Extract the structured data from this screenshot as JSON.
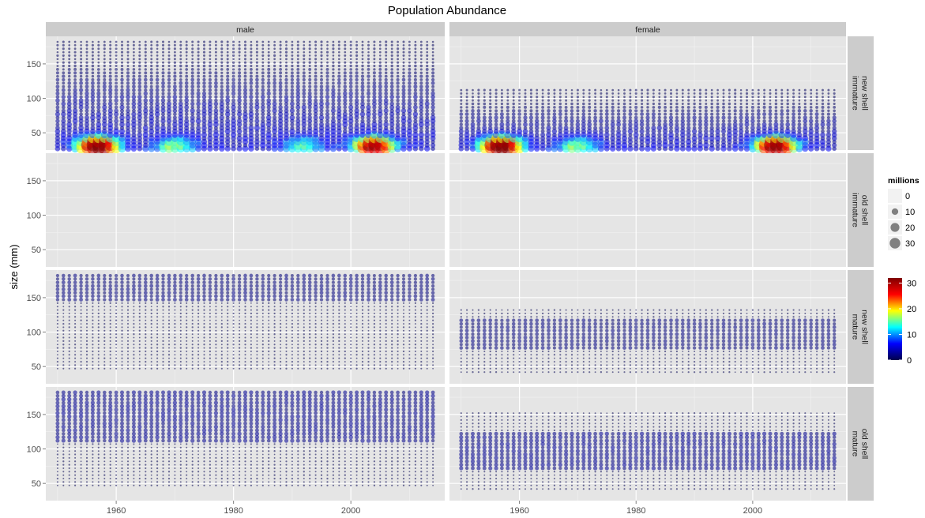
{
  "chart_data": {
    "type": "scatter",
    "title": "Population Abundance",
    "xlabel": "",
    "ylabel": "size (mm)",
    "x_range": [
      1948,
      2016
    ],
    "y_range": [
      25,
      190
    ],
    "x_ticks": [
      1960,
      1980,
      2000
    ],
    "y_ticks": [
      50,
      100,
      150
    ],
    "column_facets": [
      "male",
      "female"
    ],
    "row_facets": [
      [
        "new shell",
        "immature"
      ],
      [
        "old shell",
        "immature"
      ],
      [
        "new shell",
        "mature"
      ],
      [
        "old shell",
        "mature"
      ]
    ],
    "size_legend": {
      "title": "millions",
      "values": [
        0,
        10,
        20,
        30
      ]
    },
    "color_legend": {
      "range": [
        0,
        32
      ],
      "ticks": [
        0,
        10,
        20,
        30
      ],
      "colors": [
        "#00004c",
        "#0000ff",
        "#00ffff",
        "#ffff00",
        "#ff0000",
        "#7f0000"
      ]
    },
    "year_range": [
      1950,
      2014
    ],
    "size_bin_mm": 5,
    "panels": [
      {
        "sex": "male",
        "shell": "new shell",
        "maturity": "immature",
        "size_range": [
          27,
          185
        ],
        "mean_abundance_millions": 3,
        "peaks": [
          {
            "year": 1957,
            "size_mm": 32,
            "millions": 31
          },
          {
            "year": 2004,
            "size_mm": 32,
            "millions": 28
          },
          {
            "year": 1970,
            "size_mm": 32,
            "millions": 12
          },
          {
            "year": 1992,
            "size_mm": 32,
            "millions": 10
          }
        ]
      },
      {
        "sex": "female",
        "shell": "new shell",
        "maturity": "immature",
        "size_range": [
          27,
          112
        ],
        "mean_abundance_millions": 3,
        "peaks": [
          {
            "year": 1957,
            "size_mm": 32,
            "millions": 32
          },
          {
            "year": 2004,
            "size_mm": 32,
            "millions": 30
          },
          {
            "year": 1970,
            "size_mm": 32,
            "millions": 12
          }
        ]
      },
      {
        "sex": "male",
        "shell": "old shell",
        "maturity": "immature",
        "size_range": [],
        "mean_abundance_millions": 0,
        "peaks": []
      },
      {
        "sex": "female",
        "shell": "old shell",
        "maturity": "immature",
        "size_range": [],
        "mean_abundance_millions": 0,
        "peaks": []
      },
      {
        "sex": "male",
        "shell": "new shell",
        "maturity": "mature",
        "size_range": [
          45,
          185
        ],
        "mean_abundance_millions": 1.5,
        "dense_range": [
          145,
          185
        ],
        "peaks": []
      },
      {
        "sex": "female",
        "shell": "new shell",
        "maturity": "mature",
        "size_range": [
          40,
          135
        ],
        "mean_abundance_millions": 1.5,
        "dense_range": [
          75,
          120
        ],
        "peaks": []
      },
      {
        "sex": "male",
        "shell": "old shell",
        "maturity": "mature",
        "size_range": [
          45,
          185
        ],
        "mean_abundance_millions": 2,
        "dense_range": [
          110,
          185
        ],
        "top_band": {
          "size_mm": 185,
          "millions": 8
        },
        "peaks": []
      },
      {
        "sex": "female",
        "shell": "old shell",
        "maturity": "mature",
        "size_range": [
          40,
          155
        ],
        "mean_abundance_millions": 2,
        "dense_range": [
          70,
          125
        ],
        "peaks": []
      }
    ]
  }
}
